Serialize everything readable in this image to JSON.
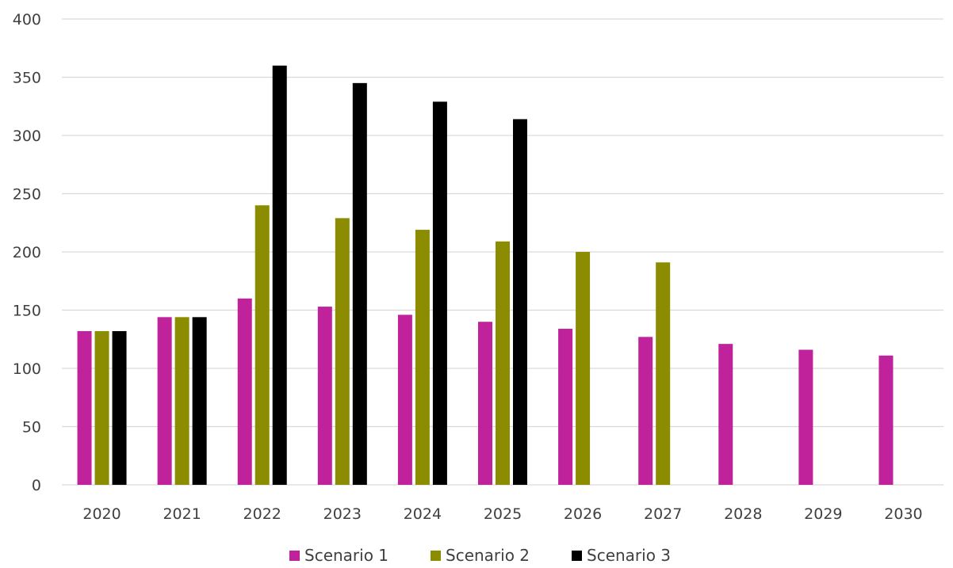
{
  "chart_data": {
    "type": "bar",
    "title": "",
    "xlabel": "",
    "ylabel": "",
    "categories": [
      "2020",
      "2021",
      "2022",
      "2023",
      "2024",
      "2025",
      "2026",
      "2027",
      "2028",
      "2029",
      "2030"
    ],
    "series": [
      {
        "name": "Scenario 1",
        "color": "#c0229b",
        "values": [
          132,
          144,
          160,
          153,
          146,
          140,
          134,
          127,
          121,
          116,
          111
        ]
      },
      {
        "name": "Scenario 2",
        "color": "#8b8c00",
        "values": [
          132,
          144,
          240,
          229,
          219,
          209,
          200,
          191,
          null,
          null,
          null
        ]
      },
      {
        "name": "Scenario 3",
        "color": "#000000",
        "values": [
          132,
          144,
          360,
          345,
          329,
          314,
          null,
          null,
          null,
          null,
          null
        ]
      }
    ],
    "ylim": [
      0,
      400
    ],
    "yticks": [
      "0",
      "50",
      "100",
      "150",
      "200",
      "250",
      "300",
      "350",
      "400"
    ],
    "grid": "horizontal",
    "legend_position": "bottom"
  }
}
